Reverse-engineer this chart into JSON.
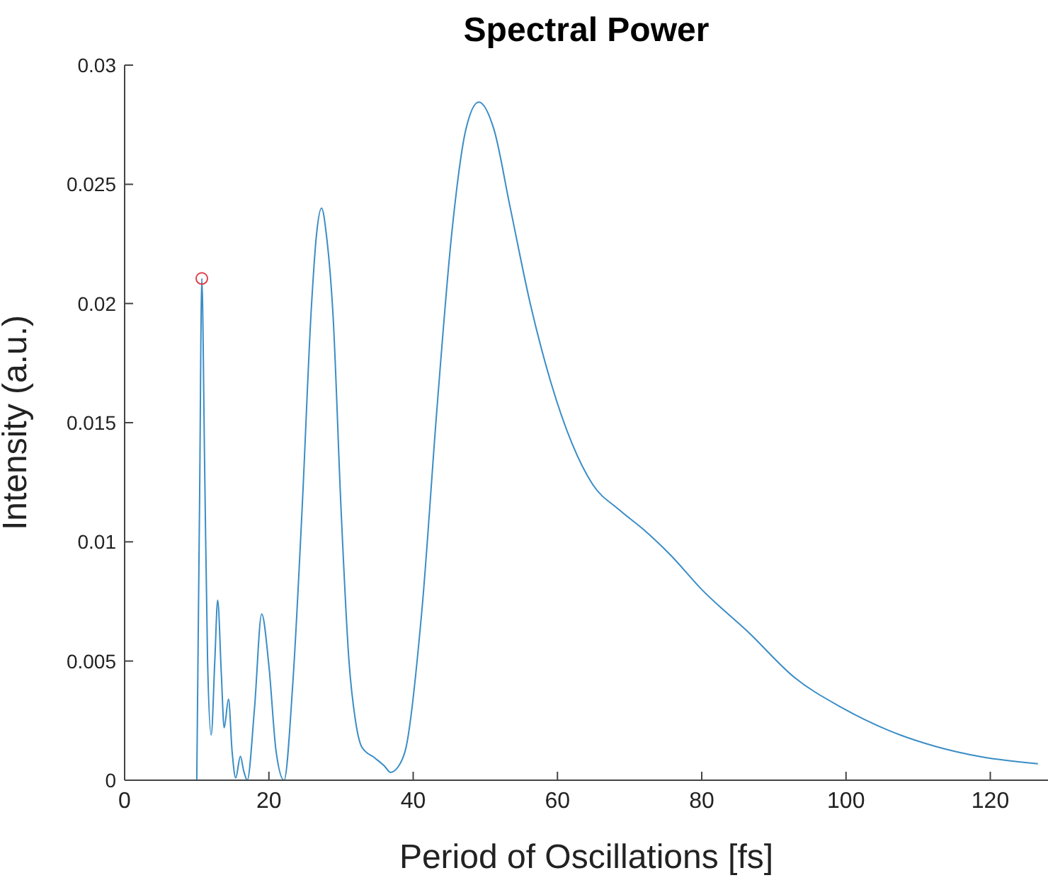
{
  "chart_data": {
    "type": "line",
    "title": "Spectral Power",
    "xlabel": "Period of Oscillations [fs]",
    "ylabel": "Intensity (a.u.)",
    "xlim": [
      0,
      128
    ],
    "xticks": [
      0,
      20,
      40,
      60,
      80,
      100,
      120
    ],
    "ylim": [
      0,
      0.03
    ],
    "yticks": [
      0,
      0.005,
      0.01,
      0.015,
      0.02,
      0.025,
      0.03
    ],
    "grid": false,
    "series": [
      {
        "color": "#3a8dc6",
        "marker": "none",
        "line_style": "solid",
        "x": [
          10,
          10.4,
          10.7,
          11.1,
          11.5,
          12,
          12.5,
          12.9,
          13.4,
          13.8,
          14.4,
          14.9,
          15.4,
          16.05,
          16.5,
          17,
          18,
          19,
          20,
          21,
          22.1,
          23.3,
          24.6,
          25.9,
          26.6,
          27.3,
          28,
          28.9,
          30,
          31.1,
          32,
          32.9,
          34.7,
          36,
          36.85,
          38,
          39,
          41.2,
          43.3,
          45.4,
          47.3,
          49.1,
          51.2,
          53.4,
          56.3,
          59.1,
          62,
          64.9,
          68.5,
          72,
          75.7,
          80,
          86.5,
          92.9,
          99.4,
          105.9,
          112.4,
          118.8,
          126.6
        ],
        "values": [
          0,
          0.012,
          0.02105,
          0.013,
          0.005,
          0.0019,
          0.005,
          0.00755,
          0.0045,
          0.0022,
          0.0034,
          0.0012,
          0.0001,
          0.001,
          0.0004,
          0,
          0.003,
          0.00697,
          0.0048,
          0.0012,
          0,
          0.004,
          0.01136,
          0.0199,
          0.0229,
          0.024,
          0.0228,
          0.01945,
          0.01138,
          0.005,
          0.0025,
          0.00138,
          0.00093,
          0.0006,
          0.00033,
          0.0006,
          0.00136,
          0.0071,
          0.0156,
          0.0231,
          0.0273,
          0.02845,
          0.0273,
          0.0241,
          0.0199,
          0.01668,
          0.01414,
          0.0124,
          0.01136,
          0.0105,
          0.00944,
          0.008,
          0.0062,
          0.0043,
          0.00305,
          0.00209,
          0.00142,
          0.00098,
          0.00069
        ]
      },
      {
        "type": "scatter",
        "color": "#e0404a",
        "marker": "circle",
        "x": [
          10.7
        ],
        "values": [
          0.02105
        ]
      }
    ]
  }
}
